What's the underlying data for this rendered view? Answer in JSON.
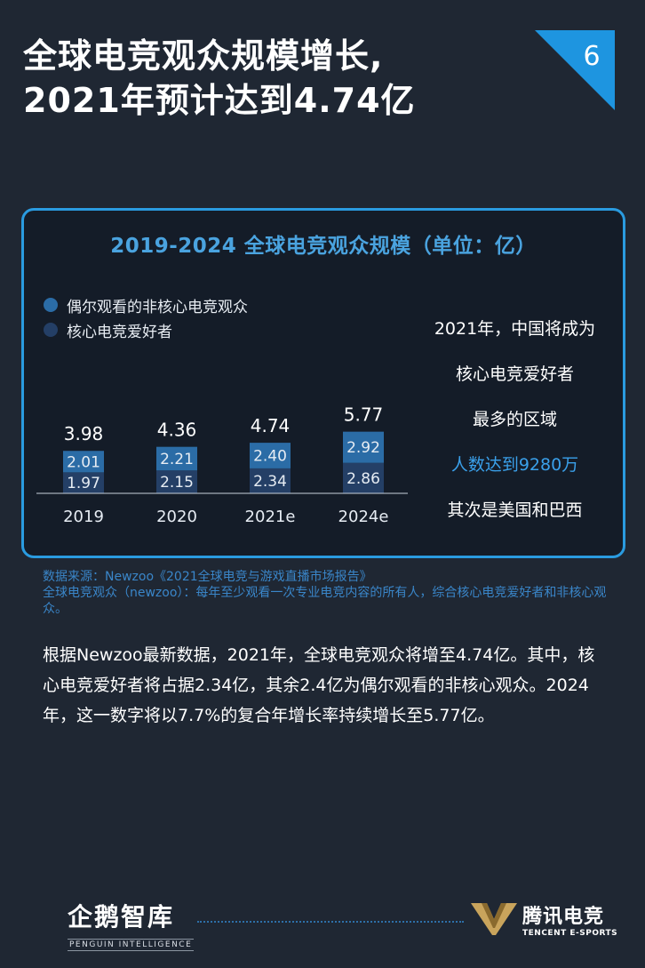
{
  "page": {
    "title_line1": "全球电竞观众规模增长,",
    "title_line2": "2021年预计达到4.74亿",
    "page_number": "6"
  },
  "colors": {
    "background": "#1f2733",
    "accent": "#2a9be0",
    "casual": "#2b6ca6",
    "core": "#243f66"
  },
  "chart_data": {
    "type": "bar",
    "stacked": true,
    "title": "2019-2024 全球电竞观众规模（单位：亿）",
    "categories": [
      "2019",
      "2020",
      "2021e",
      "2024e"
    ],
    "totals": [
      "3.98",
      "4.36",
      "4.74",
      "5.77"
    ],
    "series": [
      {
        "name": "核心电竞爱好者",
        "values": [
          1.97,
          2.15,
          2.34,
          2.86
        ],
        "labels": [
          "1.97",
          "2.15",
          "2.34",
          "2.86"
        ],
        "color": "#243f66"
      },
      {
        "name": "偶尔观看的非核心电竞观众",
        "values": [
          2.01,
          2.21,
          2.4,
          2.92
        ],
        "labels": [
          "2.01",
          "2.21",
          "2.40",
          "2.92"
        ],
        "color": "#2b6ca6"
      }
    ],
    "legend_order": [
      1,
      0
    ],
    "ylim": [
      0,
      7
    ],
    "grid": false
  },
  "side_note": {
    "line1": "2021年，中国将成为",
    "line2": "核心电竞爱好者",
    "line3": "最多的区域",
    "highlight": "人数达到9280万",
    "line5": "其次是美国和巴西"
  },
  "source": {
    "line1": "数据来源：Newzoo《2021全球电竞与游戏直播市场报告》",
    "line2": "全球电竞观众（newzoo）：每年至少观看一次专业电竞内容的所有人，综合核心电竞爱好者和非核心观众。"
  },
  "body": "根据Newzoo最新数据，2021年，全球电竞观众将增至4.74亿。其中，核心电竞爱好者将占据2.34亿，其余2.4亿为偶尔观看的非核心观众。2024年，这一数字将以7.7%的复合年增长率持续增长至5.77亿。",
  "footer": {
    "left_cn": "企鹅智库",
    "left_en": "PENGUIN INTELLIGENCE",
    "right_cn": "腾讯电竞",
    "right_en": "TENCENT E-SPORTS"
  }
}
